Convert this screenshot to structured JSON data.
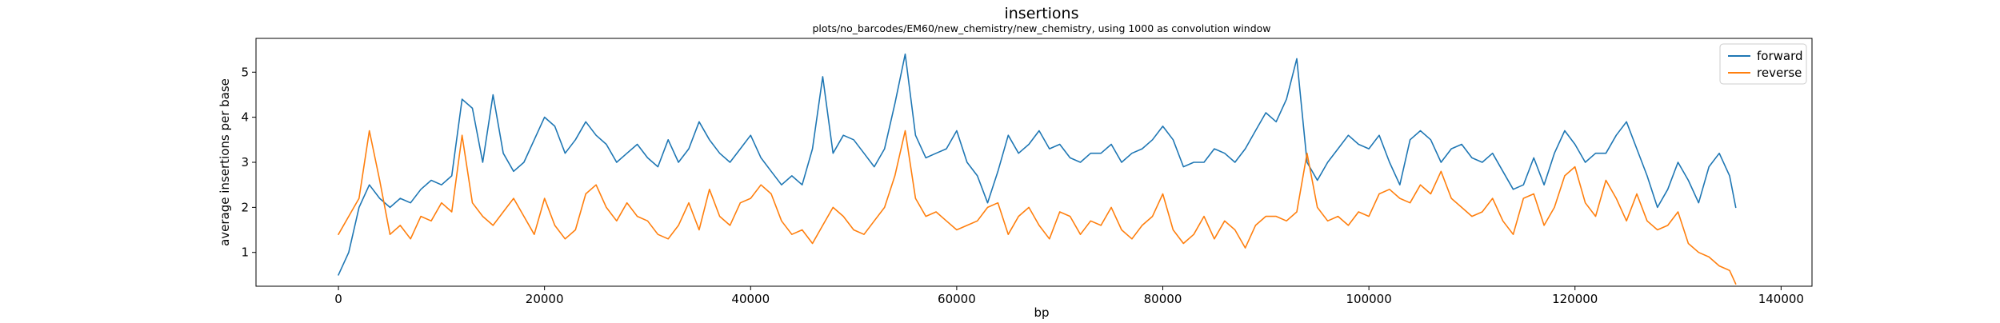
{
  "chart_data": {
    "type": "line",
    "title": "insertions",
    "subtitle": "plots/no_barcodes/EM60/new_chemistry/new_chemistry, using 1000 as convolution window",
    "xlabel": "bp",
    "ylabel": "average insertions per base",
    "xlim": [
      -8000,
      143000
    ],
    "ylim": [
      0.25,
      5.75
    ],
    "xticks": [
      0,
      20000,
      40000,
      60000,
      80000,
      100000,
      120000,
      140000
    ],
    "yticks": [
      1,
      2,
      3,
      4,
      5
    ],
    "grid": false,
    "legend_position": "top-right",
    "series": [
      {
        "name": "forward",
        "color": "#1f77b4",
        "x": [
          0,
          1000,
          2000,
          3000,
          4000,
          5000,
          6000,
          7000,
          8000,
          9000,
          10000,
          11000,
          12000,
          13000,
          14000,
          15000,
          16000,
          17000,
          18000,
          19000,
          20000,
          21000,
          22000,
          23000,
          24000,
          25000,
          26000,
          27000,
          28000,
          29000,
          30000,
          31000,
          32000,
          33000,
          34000,
          35000,
          36000,
          37000,
          38000,
          39000,
          40000,
          41000,
          42000,
          43000,
          44000,
          45000,
          46000,
          47000,
          48000,
          49000,
          50000,
          51000,
          52000,
          53000,
          54000,
          55000,
          56000,
          57000,
          58000,
          59000,
          60000,
          61000,
          62000,
          63000,
          64000,
          65000,
          66000,
          67000,
          68000,
          69000,
          70000,
          71000,
          72000,
          73000,
          74000,
          75000,
          76000,
          77000,
          78000,
          79000,
          80000,
          81000,
          82000,
          83000,
          84000,
          85000,
          86000,
          87000,
          88000,
          89000,
          90000,
          91000,
          92000,
          93000,
          94000,
          95000,
          96000,
          97000,
          98000,
          99000,
          100000,
          101000,
          102000,
          103000,
          104000,
          105000,
          106000,
          107000,
          108000,
          109000,
          110000,
          111000,
          112000,
          113000,
          114000,
          115000,
          116000,
          117000,
          118000,
          119000,
          120000,
          121000,
          122000,
          123000,
          124000,
          125000,
          126000,
          127000,
          128000,
          129000,
          130000,
          131000,
          132000,
          133000,
          134000,
          135000,
          135600
        ],
        "values": [
          0.5,
          1.0,
          2.0,
          2.5,
          2.2,
          2.0,
          2.2,
          2.1,
          2.4,
          2.6,
          2.5,
          2.7,
          4.4,
          4.2,
          3.0,
          4.5,
          3.2,
          2.8,
          3.0,
          3.5,
          4.0,
          3.8,
          3.2,
          3.5,
          3.9,
          3.6,
          3.4,
          3.0,
          3.2,
          3.4,
          3.1,
          2.9,
          3.5,
          3.0,
          3.3,
          3.9,
          3.5,
          3.2,
          3.0,
          3.3,
          3.6,
          3.1,
          2.8,
          2.5,
          2.7,
          2.5,
          3.3,
          4.9,
          3.2,
          3.6,
          3.5,
          3.2,
          2.9,
          3.3,
          4.3,
          5.4,
          3.6,
          3.1,
          3.2,
          3.3,
          3.7,
          3.0,
          2.7,
          2.1,
          2.8,
          3.6,
          3.2,
          3.4,
          3.7,
          3.3,
          3.4,
          3.1,
          3.0,
          3.2,
          3.2,
          3.4,
          3.0,
          3.2,
          3.3,
          3.5,
          3.8,
          3.5,
          2.9,
          3.0,
          3.0,
          3.3,
          3.2,
          3.0,
          3.3,
          3.7,
          4.1,
          3.9,
          4.4,
          5.3,
          3.0,
          2.6,
          3.0,
          3.3,
          3.6,
          3.4,
          3.3,
          3.6,
          3.0,
          2.5,
          3.5,
          3.7,
          3.5,
          3.0,
          3.3,
          3.4,
          3.1,
          3.0,
          3.2,
          2.8,
          2.4,
          2.5,
          3.1,
          2.5,
          3.2,
          3.7,
          3.4,
          3.0,
          3.2,
          3.2,
          3.6,
          3.9,
          3.3,
          2.7,
          2.0,
          2.4,
          3.0,
          2.6,
          2.1,
          2.9,
          3.2,
          2.7,
          2.0
        ]
      },
      {
        "name": "reverse",
        "color": "#ff7f0e",
        "x": [
          0,
          1000,
          2000,
          3000,
          4000,
          5000,
          6000,
          7000,
          8000,
          9000,
          10000,
          11000,
          12000,
          13000,
          14000,
          15000,
          16000,
          17000,
          18000,
          19000,
          20000,
          21000,
          22000,
          23000,
          24000,
          25000,
          26000,
          27000,
          28000,
          29000,
          30000,
          31000,
          32000,
          33000,
          34000,
          35000,
          36000,
          37000,
          38000,
          39000,
          40000,
          41000,
          42000,
          43000,
          44000,
          45000,
          46000,
          47000,
          48000,
          49000,
          50000,
          51000,
          52000,
          53000,
          54000,
          55000,
          56000,
          57000,
          58000,
          59000,
          60000,
          61000,
          62000,
          63000,
          64000,
          65000,
          66000,
          67000,
          68000,
          69000,
          70000,
          71000,
          72000,
          73000,
          74000,
          75000,
          76000,
          77000,
          78000,
          79000,
          80000,
          81000,
          82000,
          83000,
          84000,
          85000,
          86000,
          87000,
          88000,
          89000,
          90000,
          91000,
          92000,
          93000,
          94000,
          95000,
          96000,
          97000,
          98000,
          99000,
          100000,
          101000,
          102000,
          103000,
          104000,
          105000,
          106000,
          107000,
          108000,
          109000,
          110000,
          111000,
          112000,
          113000,
          114000,
          115000,
          116000,
          117000,
          118000,
          119000,
          120000,
          121000,
          122000,
          123000,
          124000,
          125000,
          126000,
          127000,
          128000,
          129000,
          130000,
          131000,
          132000,
          133000,
          134000,
          135000,
          135600
        ],
        "values": [
          1.4,
          1.8,
          2.2,
          3.7,
          2.6,
          1.4,
          1.6,
          1.3,
          1.8,
          1.7,
          2.1,
          1.9,
          3.6,
          2.1,
          1.8,
          1.6,
          1.9,
          2.2,
          1.8,
          1.4,
          2.2,
          1.6,
          1.3,
          1.5,
          2.3,
          2.5,
          2.0,
          1.7,
          2.1,
          1.8,
          1.7,
          1.4,
          1.3,
          1.6,
          2.1,
          1.5,
          2.4,
          1.8,
          1.6,
          2.1,
          2.2,
          2.5,
          2.3,
          1.7,
          1.4,
          1.5,
          1.2,
          1.6,
          2.0,
          1.8,
          1.5,
          1.4,
          1.7,
          2.0,
          2.7,
          3.7,
          2.2,
          1.8,
          1.9,
          1.7,
          1.5,
          1.6,
          1.7,
          2.0,
          2.1,
          1.4,
          1.8,
          2.0,
          1.6,
          1.3,
          1.9,
          1.8,
          1.4,
          1.7,
          1.6,
          2.0,
          1.5,
          1.3,
          1.6,
          1.8,
          2.3,
          1.5,
          1.2,
          1.4,
          1.8,
          1.3,
          1.7,
          1.5,
          1.1,
          1.6,
          1.8,
          1.8,
          1.7,
          1.9,
          3.2,
          2.0,
          1.7,
          1.8,
          1.6,
          1.9,
          1.8,
          2.3,
          2.4,
          2.2,
          2.1,
          2.5,
          2.3,
          2.8,
          2.2,
          2.0,
          1.8,
          1.9,
          2.2,
          1.7,
          1.4,
          2.2,
          2.3,
          1.6,
          2.0,
          2.7,
          2.9,
          2.1,
          1.8,
          2.6,
          2.2,
          1.7,
          2.3,
          1.7,
          1.5,
          1.6,
          1.9,
          1.2,
          1.0,
          0.9,
          0.7,
          0.6,
          0.3
        ]
      }
    ]
  }
}
